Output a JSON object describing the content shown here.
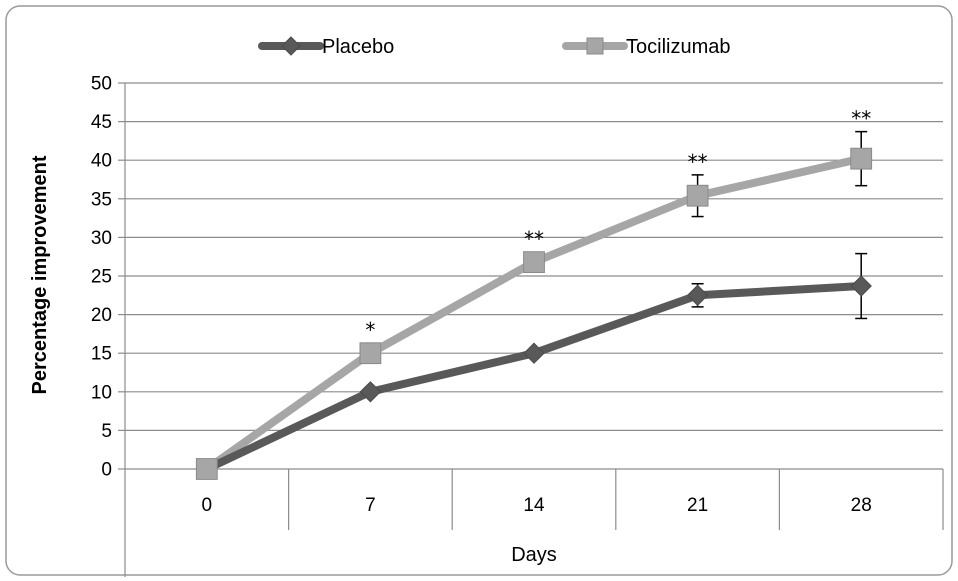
{
  "chart_data": {
    "type": "line",
    "x": [
      0,
      7,
      14,
      21,
      28
    ],
    "categories": [
      "0",
      "7",
      "14",
      "21",
      "28"
    ],
    "xlabel": "Days",
    "ylabel": "Percentage improvement",
    "ylim": [
      0,
      50
    ],
    "yticks": [
      "0",
      "5",
      "10",
      "15",
      "20",
      "25",
      "30",
      "35",
      "40",
      "45",
      "50"
    ],
    "grid": true,
    "legend_position": "top",
    "series": [
      {
        "name": "Placebo",
        "values": [
          0,
          10,
          15,
          22.5,
          23.7
        ],
        "error": [
          null,
          null,
          null,
          1.5,
          4.2
        ],
        "color": "#595959",
        "marker": "diamond"
      },
      {
        "name": "Tocilizumab",
        "values": [
          0,
          15,
          26.8,
          35.4,
          40.2
        ],
        "error": [
          null,
          null,
          null,
          2.7,
          3.5
        ],
        "color": "#a6a6a6",
        "marker": "square"
      }
    ],
    "annotations": [
      {
        "x": 7,
        "y": 15,
        "text": "*"
      },
      {
        "x": 14,
        "y": 26.8,
        "text": "**"
      },
      {
        "x": 21,
        "y": 35.4,
        "text": "**"
      },
      {
        "x": 28,
        "y": 40.2,
        "text": "**"
      }
    ]
  }
}
